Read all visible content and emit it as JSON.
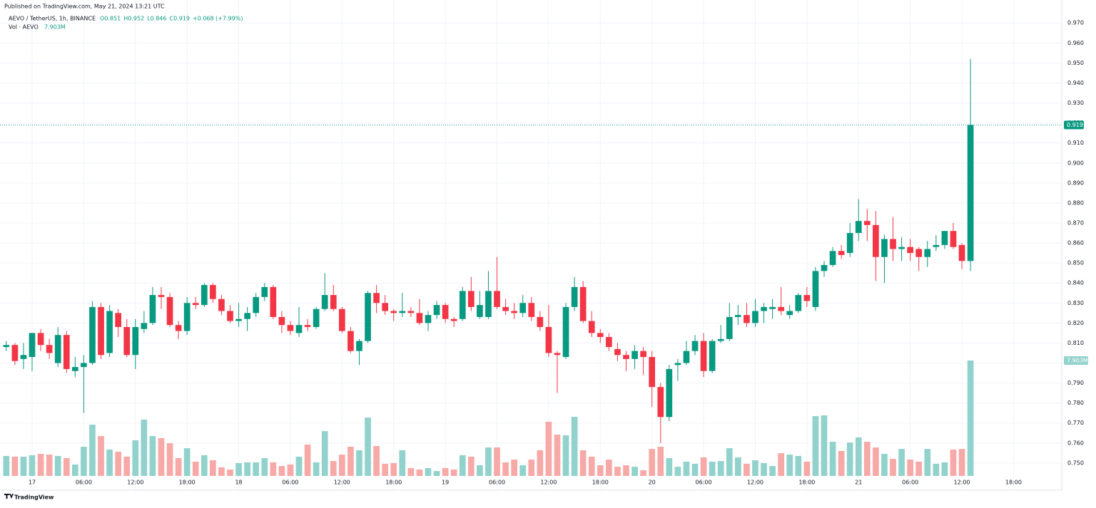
{
  "header": {
    "published": "Published on TradingView.com, May 21, 2024 13:21 UTC",
    "symbol": "AEVO / TetherUS, 1h, BINANCE",
    "ohlc": [
      "O0.851",
      "H0.952",
      "L0.846",
      "C0.919",
      "+0.068 (+7.99%)"
    ],
    "volume_title": "Vol · AEVO"
  },
  "footer": {
    "brand": "TradingView"
  },
  "chart_data": {
    "type": "candlestick",
    "up_color": "#089981",
    "down_color": "#f23645",
    "volume_up_color": "#92d2cc",
    "volume_down_color": "#f7a9a7",
    "grid": true,
    "xlim": [
      -0.73,
      122.6
    ],
    "ylim": [
      0.73642,
      0.97863
    ],
    "y2lim": [
      0,
      32.2
    ],
    "xticks": [
      {
        "value": 3,
        "label": "17"
      },
      {
        "value": 9,
        "label": "06:00"
      },
      {
        "value": 15,
        "label": "12:00"
      },
      {
        "value": 21,
        "label": "18:00"
      },
      {
        "value": 27,
        "label": "18"
      },
      {
        "value": 33,
        "label": "06:00"
      },
      {
        "value": 39,
        "label": "12:00"
      },
      {
        "value": 45,
        "label": "18:00"
      },
      {
        "value": 51,
        "label": "19"
      },
      {
        "value": 57,
        "label": "06:00"
      },
      {
        "value": 63,
        "label": "12:00"
      },
      {
        "value": 69,
        "label": "18:00"
      },
      {
        "value": 75,
        "label": "20"
      },
      {
        "value": 81,
        "label": "06:00"
      },
      {
        "value": 87,
        "label": "12:00"
      },
      {
        "value": 93,
        "label": "18:00"
      },
      {
        "value": 99,
        "label": "21"
      },
      {
        "value": 105,
        "label": "06:00"
      },
      {
        "value": 111,
        "label": "12:00"
      },
      {
        "value": 117,
        "label": "18:00"
      }
    ],
    "yticks": [
      {
        "value": 0.75,
        "label": "0.750"
      },
      {
        "value": 0.76,
        "label": "0.760"
      },
      {
        "value": 0.77,
        "label": "0.770"
      },
      {
        "value": 0.78,
        "label": "0.780"
      },
      {
        "value": 0.79,
        "label": "0.790"
      },
      {
        "value": 0.8,
        "label": "0.800"
      },
      {
        "value": 0.81,
        "label": "0.810"
      },
      {
        "value": 0.82,
        "label": "0.820"
      },
      {
        "value": 0.83,
        "label": "0.830"
      },
      {
        "value": 0.84,
        "label": "0.840"
      },
      {
        "value": 0.85,
        "label": "0.850"
      },
      {
        "value": 0.86,
        "label": "0.860"
      },
      {
        "value": 0.87,
        "label": "0.870"
      },
      {
        "value": 0.88,
        "label": "0.880"
      },
      {
        "value": 0.89,
        "label": "0.890"
      },
      {
        "value": 0.9,
        "label": "0.900"
      },
      {
        "value": 0.91,
        "label": "0.910"
      },
      {
        "value": 0.92,
        "label": "0.920"
      },
      {
        "value": 0.93,
        "label": "0.930"
      },
      {
        "value": 0.94,
        "label": "0.940"
      },
      {
        "value": 0.95,
        "label": "0.950"
      },
      {
        "value": 0.96,
        "label": "0.960"
      },
      {
        "value": 0.97,
        "label": "0.970"
      }
    ],
    "open": [
      0.808,
      0.809,
      0.802,
      0.803,
      0.815,
      0.809,
      0.8,
      0.814,
      0.796,
      0.798,
      0.8,
      0.828,
      0.805,
      0.825,
      0.818,
      0.804,
      0.817,
      0.82,
      0.834,
      0.833,
      0.819,
      0.816,
      0.83,
      0.829,
      0.839,
      0.832,
      0.826,
      0.821,
      0.822,
      0.825,
      0.833,
      0.838,
      0.823,
      0.819,
      0.815,
      0.819,
      0.818,
      0.827,
      0.834,
      0.827,
      0.816,
      0.806,
      0.811,
      0.835,
      0.83,
      0.826,
      0.825,
      0.826,
      0.825,
      0.82,
      0.824,
      0.829,
      0.822,
      0.822,
      0.836,
      0.823,
      0.823,
      0.836,
      0.828,
      0.826,
      0.825,
      0.83,
      0.823,
      0.818,
      0.805,
      0.803,
      0.828,
      0.838,
      0.821,
      0.815,
      0.813,
      0.807,
      0.804,
      0.802,
      0.806,
      0.803,
      0.788,
      0.773,
      0.799,
      0.8,
      0.806,
      0.811,
      0.796,
      0.811,
      0.812,
      0.823,
      0.824,
      0.82,
      0.826,
      0.827,
      0.828,
      0.824,
      0.826,
      0.834,
      0.828,
      0.846,
      0.849,
      0.856,
      0.855,
      0.865,
      0.871,
      0.869,
      0.853,
      0.862,
      0.857,
      0.858,
      0.857,
      0.853,
      0.858,
      0.859,
      0.866,
      0.859,
      0.851
    ],
    "high": [
      0.811,
      0.81,
      0.81,
      0.815,
      0.817,
      0.812,
      0.818,
      0.816,
      0.803,
      0.804,
      0.831,
      0.83,
      0.829,
      0.827,
      0.822,
      0.822,
      0.826,
      0.838,
      0.838,
      0.835,
      0.821,
      0.833,
      0.833,
      0.84,
      0.84,
      0.834,
      0.829,
      0.83,
      0.828,
      0.835,
      0.84,
      0.839,
      0.826,
      0.821,
      0.828,
      0.822,
      0.828,
      0.845,
      0.839,
      0.828,
      0.818,
      0.812,
      0.836,
      0.839,
      0.834,
      0.827,
      0.835,
      0.828,
      0.832,
      0.826,
      0.831,
      0.83,
      0.823,
      0.838,
      0.843,
      0.836,
      0.846,
      0.853,
      0.832,
      0.83,
      0.834,
      0.833,
      0.826,
      0.829,
      0.806,
      0.83,
      0.843,
      0.841,
      0.826,
      0.817,
      0.815,
      0.81,
      0.806,
      0.809,
      0.808,
      0.806,
      0.79,
      0.799,
      0.802,
      0.811,
      0.814,
      0.815,
      0.812,
      0.819,
      0.83,
      0.829,
      0.83,
      0.832,
      0.83,
      0.832,
      0.838,
      0.829,
      0.835,
      0.838,
      0.848,
      0.851,
      0.858,
      0.859,
      0.87,
      0.882,
      0.877,
      0.876,
      0.864,
      0.873,
      0.863,
      0.862,
      0.858,
      0.861,
      0.864,
      0.866,
      0.87,
      0.86,
      0.952
    ],
    "low": [
      0.806,
      0.799,
      0.797,
      0.796,
      0.806,
      0.802,
      0.798,
      0.795,
      0.793,
      0.775,
      0.799,
      0.802,
      0.803,
      0.813,
      0.803,
      0.797,
      0.815,
      0.819,
      0.827,
      0.818,
      0.812,
      0.814,
      0.827,
      0.828,
      0.83,
      0.824,
      0.82,
      0.818,
      0.816,
      0.823,
      0.831,
      0.822,
      0.815,
      0.814,
      0.813,
      0.816,
      0.817,
      0.826,
      0.826,
      0.815,
      0.805,
      0.799,
      0.81,
      0.825,
      0.824,
      0.821,
      0.823,
      0.823,
      0.819,
      0.816,
      0.822,
      0.82,
      0.818,
      0.821,
      0.826,
      0.822,
      0.822,
      0.827,
      0.824,
      0.822,
      0.823,
      0.821,
      0.816,
      0.803,
      0.785,
      0.802,
      0.826,
      0.82,
      0.813,
      0.81,
      0.806,
      0.801,
      0.796,
      0.797,
      0.794,
      0.778,
      0.76,
      0.771,
      0.791,
      0.799,
      0.804,
      0.793,
      0.795,
      0.81,
      0.811,
      0.819,
      0.818,
      0.818,
      0.82,
      0.822,
      0.824,
      0.822,
      0.825,
      0.828,
      0.826,
      0.843,
      0.848,
      0.852,
      0.853,
      0.861,
      0.861,
      0.841,
      0.84,
      0.851,
      0.851,
      0.851,
      0.846,
      0.848,
      0.856,
      0.857,
      0.857,
      0.847,
      0.846
    ],
    "close": [
      0.809,
      0.801,
      0.804,
      0.815,
      0.809,
      0.805,
      0.814,
      0.797,
      0.798,
      0.8,
      0.828,
      0.804,
      0.826,
      0.818,
      0.804,
      0.818,
      0.82,
      0.834,
      0.833,
      0.819,
      0.816,
      0.83,
      0.829,
      0.839,
      0.832,
      0.826,
      0.821,
      0.822,
      0.825,
      0.833,
      0.838,
      0.823,
      0.819,
      0.816,
      0.819,
      0.818,
      0.827,
      0.834,
      0.827,
      0.816,
      0.806,
      0.811,
      0.835,
      0.83,
      0.826,
      0.825,
      0.826,
      0.825,
      0.82,
      0.824,
      0.829,
      0.822,
      0.821,
      0.836,
      0.828,
      0.829,
      0.836,
      0.828,
      0.826,
      0.825,
      0.83,
      0.823,
      0.818,
      0.805,
      0.804,
      0.828,
      0.838,
      0.821,
      0.815,
      0.813,
      0.808,
      0.804,
      0.802,
      0.806,
      0.803,
      0.788,
      0.773,
      0.797,
      0.8,
      0.806,
      0.811,
      0.796,
      0.811,
      0.812,
      0.823,
      0.824,
      0.82,
      0.826,
      0.828,
      0.828,
      0.826,
      0.826,
      0.834,
      0.831,
      0.846,
      0.849,
      0.856,
      0.854,
      0.865,
      0.871,
      0.869,
      0.853,
      0.862,
      0.857,
      0.858,
      0.855,
      0.853,
      0.857,
      0.859,
      0.866,
      0.858,
      0.851,
      0.919
    ],
    "volume": [
      1.37,
      1.32,
      1.32,
      1.42,
      1.51,
      1.46,
      1.37,
      1.22,
      0.78,
      2.0,
      3.51,
      2.73,
      1.81,
      1.66,
      1.32,
      2.44,
      3.86,
      2.73,
      2.59,
      2.24,
      1.22,
      1.9,
      0.98,
      1.42,
      1.07,
      0.59,
      0.44,
      0.88,
      0.93,
      0.93,
      1.22,
      0.93,
      0.68,
      0.78,
      1.32,
      2.15,
      0.93,
      3.07,
      1.02,
      1.46,
      2.0,
      1.76,
      4.0,
      2.05,
      0.83,
      0.88,
      1.76,
      0.54,
      0.44,
      0.54,
      0.34,
      0.54,
      0.44,
      1.42,
      1.32,
      0.73,
      1.95,
      1.95,
      0.93,
      1.12,
      0.73,
      1.12,
      1.76,
      3.71,
      2.83,
      2.78,
      4.05,
      1.76,
      1.32,
      0.73,
      1.12,
      0.63,
      0.73,
      0.63,
      0.39,
      1.85,
      2.0,
      1.22,
      0.63,
      0.98,
      0.83,
      1.27,
      0.98,
      1.02,
      1.9,
      1.27,
      0.83,
      1.07,
      0.88,
      0.68,
      1.56,
      1.46,
      1.37,
      0.98,
      4.1,
      4.15,
      2.34,
      1.71,
      2.29,
      2.64,
      2.34,
      1.95,
      1.51,
      1.17,
      1.85,
      1.12,
      0.98,
      1.85,
      0.83,
      0.93,
      1.81,
      1.85,
      7.903
    ],
    "volume_label": "7.903M"
  }
}
